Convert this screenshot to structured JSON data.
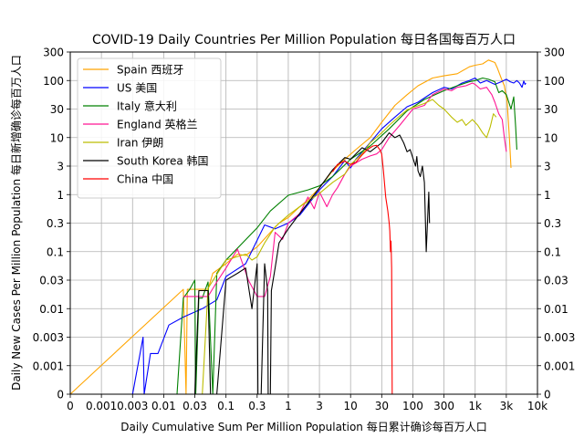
{
  "chart_data": {
    "type": "line",
    "title": "COVID-19 Daily Countries Per Million Population 每日各国每百万人口",
    "xlabel": "Daily Cumulative Sum Per Million Population 每日累计确诊每百万人口",
    "ylabel": "Daily New Cases Per Million Population 每日新增确诊每百万人口",
    "x_scale": "symlog",
    "y_scale": "symlog",
    "xlim": [
      0,
      10000
    ],
    "ylim": [
      0,
      300
    ],
    "grid": true,
    "legend_position": "top-left",
    "x_ticks": [
      {
        "value": 0,
        "label": "0"
      },
      {
        "value": 0.001,
        "label": "0.001"
      },
      {
        "value": 0.003,
        "label": "0.003"
      },
      {
        "value": 0.01,
        "label": "0.01"
      },
      {
        "value": 0.03,
        "label": "0.03"
      },
      {
        "value": 0.1,
        "label": "0.1"
      },
      {
        "value": 0.3,
        "label": "0.3"
      },
      {
        "value": 1,
        "label": "1"
      },
      {
        "value": 3,
        "label": "3"
      },
      {
        "value": 10,
        "label": "10"
      },
      {
        "value": 30,
        "label": "30"
      },
      {
        "value": 100,
        "label": "100"
      },
      {
        "value": 300,
        "label": "300"
      },
      {
        "value": 1000,
        "label": "1k"
      },
      {
        "value": 3000,
        "label": "3k"
      },
      {
        "value": 10000,
        "label": "10k"
      }
    ],
    "y_ticks": [
      {
        "value": 0,
        "label": "0"
      },
      {
        "value": 0.001,
        "label": "0.001"
      },
      {
        "value": 0.003,
        "label": "0.003"
      },
      {
        "value": 0.01,
        "label": "0.01"
      },
      {
        "value": 0.03,
        "label": "0.03"
      },
      {
        "value": 0.1,
        "label": "0.1"
      },
      {
        "value": 0.3,
        "label": "0.3"
      },
      {
        "value": 1,
        "label": "1"
      },
      {
        "value": 3,
        "label": "3"
      },
      {
        "value": 10,
        "label": "10"
      },
      {
        "value": 30,
        "label": "30"
      },
      {
        "value": 100,
        "label": "100"
      },
      {
        "value": 300,
        "label": "300"
      }
    ],
    "series": [
      {
        "name": "Spain 西班牙",
        "color": "#ffa500",
        "points": [
          [
            0,
            0
          ],
          [
            0.02,
            0.021
          ],
          [
            0.022,
            0
          ],
          [
            0.023,
            0.021
          ],
          [
            0.03,
            0.021
          ],
          [
            0.05,
            0.021
          ],
          [
            0.06,
            0.04
          ],
          [
            0.1,
            0.06
          ],
          [
            0.15,
            0.09
          ],
          [
            0.2,
            0.085
          ],
          [
            0.3,
            0.12
          ],
          [
            0.5,
            0.21
          ],
          [
            0.7,
            0.3
          ],
          [
            1,
            0.38
          ],
          [
            1.5,
            0.6
          ],
          [
            2,
            0.8
          ],
          [
            3,
            1.3
          ],
          [
            5,
            2.5
          ],
          [
            8,
            4
          ],
          [
            12,
            6
          ],
          [
            20,
            10
          ],
          [
            30,
            18
          ],
          [
            50,
            35
          ],
          [
            80,
            55
          ],
          [
            120,
            80
          ],
          [
            200,
            110
          ],
          [
            300,
            120
          ],
          [
            500,
            130
          ],
          [
            800,
            170
          ],
          [
            1000,
            180
          ],
          [
            1300,
            190
          ],
          [
            1600,
            220
          ],
          [
            2000,
            200
          ],
          [
            2200,
            160
          ],
          [
            2500,
            110
          ],
          [
            2800,
            80
          ],
          [
            3100,
            40
          ],
          [
            3400,
            9
          ],
          [
            3600,
            2.8
          ]
        ]
      },
      {
        "name": "US 美国",
        "color": "#0000ff",
        "points": [
          [
            0.003,
            0
          ],
          [
            0.0045,
            0.003
          ],
          [
            0.0047,
            0
          ],
          [
            0.006,
            0.0016
          ],
          [
            0.008,
            0.0016
          ],
          [
            0.012,
            0.005
          ],
          [
            0.02,
            0.007
          ],
          [
            0.04,
            0.01
          ],
          [
            0.07,
            0.014
          ],
          [
            0.1,
            0.035
          ],
          [
            0.2,
            0.06
          ],
          [
            0.4,
            0.28
          ],
          [
            0.6,
            0.24
          ],
          [
            1,
            0.3
          ],
          [
            1.5,
            0.42
          ],
          [
            3,
            1.2
          ],
          [
            5,
            2
          ],
          [
            8,
            3.8
          ],
          [
            10,
            2.8
          ],
          [
            12,
            4
          ],
          [
            18,
            7
          ],
          [
            30,
            14
          ],
          [
            50,
            22
          ],
          [
            80,
            33
          ],
          [
            120,
            40
          ],
          [
            200,
            60
          ],
          [
            300,
            75
          ],
          [
            400,
            70
          ],
          [
            500,
            80
          ],
          [
            600,
            90
          ],
          [
            800,
            100
          ],
          [
            1000,
            110
          ],
          [
            1200,
            90
          ],
          [
            1500,
            100
          ],
          [
            2000,
            85
          ],
          [
            2500,
            95
          ],
          [
            3000,
            105
          ],
          [
            3500,
            95
          ],
          [
            4000,
            90
          ],
          [
            4500,
            100
          ],
          [
            5000,
            90
          ],
          [
            5500,
            75
          ],
          [
            5900,
            98
          ],
          [
            6200,
            85
          ],
          [
            6400,
            90
          ]
        ]
      },
      {
        "name": "Italy 意大利",
        "color": "#008000",
        "points": [
          [
            0.016,
            0
          ],
          [
            0.02,
            0.015
          ],
          [
            0.025,
            0.021
          ],
          [
            0.03,
            0.03
          ],
          [
            0.031,
            0
          ],
          [
            0.035,
            0.015
          ],
          [
            0.04,
            0.015
          ],
          [
            0.05,
            0.028
          ],
          [
            0.06,
            0
          ],
          [
            0.07,
            0.04
          ],
          [
            0.1,
            0.07
          ],
          [
            0.3,
            0.25
          ],
          [
            0.5,
            0.5
          ],
          [
            1,
            0.97
          ],
          [
            2,
            1.2
          ],
          [
            3,
            1.4
          ],
          [
            5,
            2
          ],
          [
            10,
            4
          ],
          [
            20,
            7
          ],
          [
            40,
            14
          ],
          [
            80,
            28
          ],
          [
            150,
            45
          ],
          [
            300,
            65
          ],
          [
            500,
            80
          ],
          [
            800,
            95
          ],
          [
            1000,
            100
          ],
          [
            1300,
            110
          ],
          [
            1600,
            105
          ],
          [
            2000,
            95
          ],
          [
            2300,
            60
          ],
          [
            2600,
            65
          ],
          [
            3000,
            55
          ],
          [
            3300,
            40
          ],
          [
            3600,
            30
          ],
          [
            4000,
            50
          ],
          [
            4300,
            15
          ],
          [
            4500,
            6
          ]
        ]
      },
      {
        "name": "England 英格兰",
        "color": "#ff1493",
        "points": [
          [
            0.02,
            0.016
          ],
          [
            0.03,
            0.016
          ],
          [
            0.04,
            0.016
          ],
          [
            0.05,
            0.016
          ],
          [
            0.07,
            0.028
          ],
          [
            0.1,
            0.05
          ],
          [
            0.15,
            0.11
          ],
          [
            0.18,
            0.06
          ],
          [
            0.22,
            0.03
          ],
          [
            0.3,
            0.016
          ],
          [
            0.4,
            0.016
          ],
          [
            0.5,
            0.035
          ],
          [
            0.6,
            0.21
          ],
          [
            0.8,
            0.16
          ],
          [
            1,
            0.3
          ],
          [
            1.5,
            0.45
          ],
          [
            2,
            0.9
          ],
          [
            2.5,
            0.55
          ],
          [
            3,
            1.1
          ],
          [
            4,
            0.6
          ],
          [
            5,
            1
          ],
          [
            6,
            1.3
          ],
          [
            8,
            2.2
          ],
          [
            10,
            3
          ],
          [
            15,
            4
          ],
          [
            20,
            4.6
          ],
          [
            25,
            5
          ],
          [
            30,
            6
          ],
          [
            40,
            10
          ],
          [
            60,
            16
          ],
          [
            100,
            30
          ],
          [
            150,
            35
          ],
          [
            200,
            55
          ],
          [
            300,
            70
          ],
          [
            400,
            65
          ],
          [
            500,
            75
          ],
          [
            700,
            80
          ],
          [
            900,
            90
          ],
          [
            1000,
            85
          ],
          [
            1200,
            70
          ],
          [
            1500,
            75
          ],
          [
            1800,
            55
          ],
          [
            2000,
            40
          ],
          [
            2300,
            25
          ],
          [
            2600,
            20
          ],
          [
            2800,
            10
          ],
          [
            3000,
            5.5
          ]
        ]
      },
      {
        "name": "Iran 伊朗",
        "color": "#bcbd00",
        "points": [
          [
            0.04,
            0
          ],
          [
            0.05,
            0.022
          ],
          [
            0.1,
            0.07
          ],
          [
            0.2,
            0.09
          ],
          [
            0.25,
            0.07
          ],
          [
            0.3,
            0.08
          ],
          [
            0.4,
            0.14
          ],
          [
            0.6,
            0.26
          ],
          [
            0.8,
            0.34
          ],
          [
            1,
            0.42
          ],
          [
            1.5,
            0.6
          ],
          [
            2,
            0.75
          ],
          [
            3,
            1.05
          ],
          [
            5,
            1.6
          ],
          [
            8,
            2.2
          ],
          [
            10,
            3.2
          ],
          [
            15,
            5
          ],
          [
            20,
            8
          ],
          [
            30,
            12
          ],
          [
            40,
            16
          ],
          [
            60,
            23
          ],
          [
            80,
            29
          ],
          [
            100,
            32
          ],
          [
            150,
            38
          ],
          [
            200,
            45
          ],
          [
            250,
            35
          ],
          [
            300,
            30
          ],
          [
            400,
            22
          ],
          [
            500,
            18
          ],
          [
            600,
            20
          ],
          [
            700,
            16
          ],
          [
            900,
            20
          ],
          [
            1100,
            16
          ],
          [
            1300,
            12
          ],
          [
            1500,
            10
          ],
          [
            1700,
            15
          ],
          [
            1900,
            25
          ],
          [
            2100,
            22
          ]
        ]
      },
      {
        "name": "South Korea 韩国",
        "color": "#000000",
        "points": [
          [
            0.03,
            0
          ],
          [
            0.035,
            0.02
          ],
          [
            0.05,
            0.02
          ],
          [
            0.055,
            0
          ],
          [
            0.06,
            0
          ],
          [
            0.07,
            0
          ],
          [
            0.1,
            0.03
          ],
          [
            0.15,
            0.04
          ],
          [
            0.2,
            0.05
          ],
          [
            0.25,
            0.01
          ],
          [
            0.3,
            0.06
          ],
          [
            0.31,
            0
          ],
          [
            0.35,
            0
          ],
          [
            0.4,
            0.06
          ],
          [
            0.45,
            0.02
          ],
          [
            0.46,
            0
          ],
          [
            0.5,
            0
          ],
          [
            0.52,
            0.02
          ],
          [
            0.6,
            0.05
          ],
          [
            0.7,
            0.14
          ],
          [
            1,
            0.24
          ],
          [
            1.5,
            0.45
          ],
          [
            2,
            0.7
          ],
          [
            3,
            1.3
          ],
          [
            5,
            2.6
          ],
          [
            8,
            4.3
          ],
          [
            10,
            4
          ],
          [
            15,
            6.5
          ],
          [
            20,
            5.5
          ],
          [
            30,
            8
          ],
          [
            40,
            12
          ],
          [
            50,
            10
          ],
          [
            60,
            11
          ],
          [
            70,
            8
          ],
          [
            80,
            5.5
          ],
          [
            90,
            6
          ],
          [
            100,
            4.2
          ],
          [
            110,
            3
          ],
          [
            115,
            4.5
          ],
          [
            120,
            2.5
          ],
          [
            130,
            2
          ],
          [
            140,
            3
          ],
          [
            150,
            1.6
          ],
          [
            160,
            0.1
          ],
          [
            170,
            0.5
          ],
          [
            175,
            1.1
          ],
          [
            180,
            0.3
          ]
        ]
      },
      {
        "name": "China 中国",
        "color": "#ff0000",
        "points": [
          [
            5,
            2.4
          ],
          [
            6,
            3.2
          ],
          [
            8,
            3.7
          ],
          [
            10,
            3.2
          ],
          [
            12,
            3.5
          ],
          [
            15,
            4.8
          ],
          [
            18,
            6
          ],
          [
            22,
            7
          ],
          [
            25,
            7.2
          ],
          [
            28,
            6
          ],
          [
            30,
            5
          ],
          [
            32,
            2.5
          ],
          [
            35,
            0.9
          ],
          [
            38,
            0.5
          ],
          [
            40,
            0.3
          ],
          [
            41,
            0.22
          ],
          [
            42,
            0.1
          ],
          [
            43,
            0.15
          ],
          [
            44,
            0.05
          ],
          [
            45,
            0
          ]
        ]
      }
    ]
  }
}
